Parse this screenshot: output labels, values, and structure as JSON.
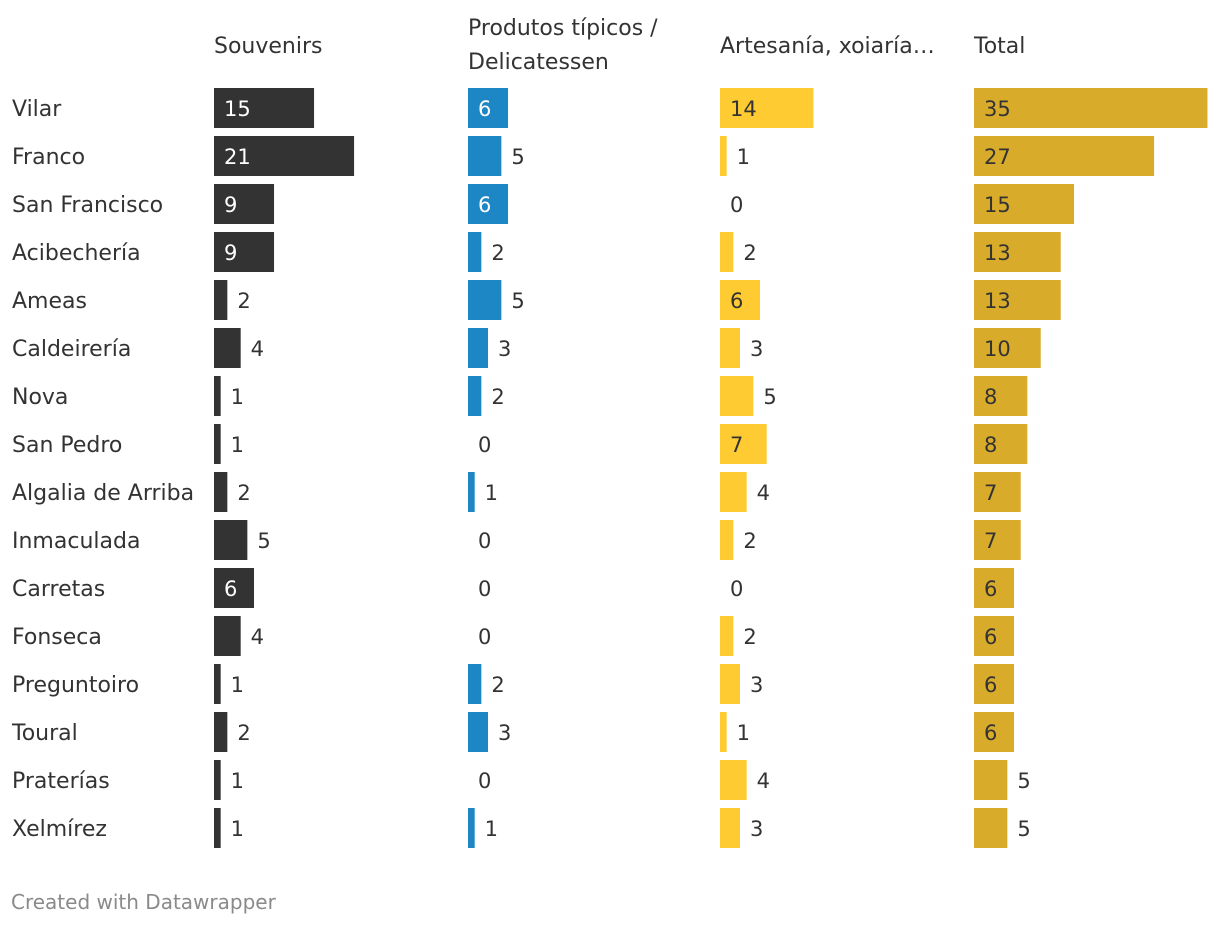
{
  "chart_data": {
    "type": "bar",
    "title": "",
    "categories": [
      "Vilar",
      "Franco",
      "San Francisco",
      "Acibechería",
      "Ameas",
      "Caldeirería",
      "Nova",
      "San Pedro",
      "Algalia de Arriba",
      "Inmaculada",
      "Carretas",
      "Fonseca",
      "Preguntoiro",
      "Toural",
      "Praterías",
      "Xelmírez"
    ],
    "series": [
      {
        "name": "Souvenirs",
        "header_lines": [
          "Souvenirs"
        ],
        "color": "#333333",
        "values": [
          15,
          21,
          9,
          9,
          2,
          4,
          1,
          1,
          2,
          5,
          6,
          4,
          1,
          2,
          1,
          1
        ]
      },
      {
        "name": "Produtos típicos / Delicatessen",
        "header_lines": [
          "Produtos típicos /",
          "Delicatessen"
        ],
        "color": "#1d87c5",
        "values": [
          6,
          5,
          6,
          2,
          5,
          3,
          2,
          0,
          1,
          0,
          0,
          0,
          2,
          3,
          0,
          1
        ]
      },
      {
        "name": "Artesanía, xoiaría…",
        "header_lines": [
          "Artesanía, xoiaría…"
        ],
        "color": "#ffcb33",
        "values": [
          14,
          1,
          0,
          2,
          6,
          3,
          5,
          7,
          4,
          2,
          0,
          2,
          3,
          1,
          4,
          3
        ]
      },
      {
        "name": "Total",
        "header_lines": [
          "Total"
        ],
        "color": "#d9ab2b",
        "values": [
          35,
          27,
          15,
          13,
          13,
          10,
          8,
          8,
          7,
          7,
          6,
          6,
          6,
          6,
          5,
          5
        ]
      }
    ]
  },
  "footer": {
    "credit": "Created with Datawrapper"
  }
}
